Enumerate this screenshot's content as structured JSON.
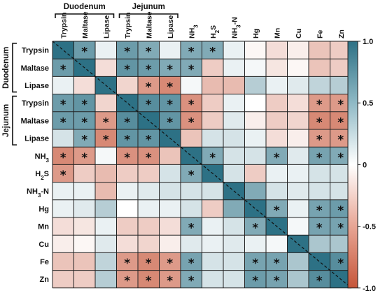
{
  "chart_data": {
    "type": "heatmap",
    "title": "",
    "columns": [
      "Trypsin",
      "Maltase",
      "Lipase",
      "Trypsin",
      "Maltase",
      "Lipase",
      "NH3",
      "H2S",
      "NH3-N",
      "Hg",
      "Mn",
      "Cu",
      "Fe",
      "Zn"
    ],
    "rows": [
      "Trypsin",
      "Maltase",
      "Lipase",
      "Trypsin",
      "Maltase",
      "Lipase",
      "NH3",
      "H2S",
      "NH3-N",
      "Hg",
      "Mn",
      "Cu",
      "Fe",
      "Zn"
    ],
    "row_labels": [
      {
        "base": "Trypsin"
      },
      {
        "base": "Maltase"
      },
      {
        "base": "Lipase"
      },
      {
        "base": "Trypsin"
      },
      {
        "base": "Maltase"
      },
      {
        "base": "Lipase"
      },
      {
        "base": "NH",
        "sub": "3"
      },
      {
        "base": "H",
        "sub": "2",
        "tail": "S"
      },
      {
        "base": "NH",
        "sub": "3",
        "tail": "-N"
      },
      {
        "base": "Hg"
      },
      {
        "base": "Mn"
      },
      {
        "base": "Cu"
      },
      {
        "base": "Fe"
      },
      {
        "base": "Zn"
      }
    ],
    "col_labels": [
      {
        "base": "Trypsin"
      },
      {
        "base": "Maltase"
      },
      {
        "base": "Lipase"
      },
      {
        "base": "Trypsin"
      },
      {
        "base": "Maltase"
      },
      {
        "base": "Lipase"
      },
      {
        "base": "NH",
        "sub": "3"
      },
      {
        "base": "H",
        "sub": "2",
        "tail": "S"
      },
      {
        "base": "NH",
        "sub": "3",
        "tail": "-N"
      },
      {
        "base": "Hg"
      },
      {
        "base": "Mn"
      },
      {
        "base": "Cu"
      },
      {
        "base": "Fe"
      },
      {
        "base": "Zn"
      }
    ],
    "col_groups": [
      {
        "label": "Duodenum",
        "from": 0,
        "to": 2
      },
      {
        "label": "Jejunum",
        "from": 3,
        "to": 5
      }
    ],
    "row_groups": [
      {
        "label": "Duodenum",
        "from": 0,
        "to": 2
      },
      {
        "label": "Jejunum",
        "from": 3,
        "to": 5
      }
    ],
    "values": [
      [
        1.0,
        0.7,
        0.1,
        0.7,
        0.6,
        0.1,
        0.6,
        0.6,
        0.1,
        -0.05,
        -0.2,
        -0.1,
        -0.35,
        -0.3
      ],
      [
        0.7,
        1.0,
        -0.2,
        0.75,
        0.7,
        0.6,
        0.6,
        -0.3,
        0.1,
        0.05,
        -0.15,
        -0.05,
        -0.35,
        -0.3
      ],
      [
        0.1,
        -0.2,
        1.0,
        -0.25,
        -0.6,
        -0.7,
        0.05,
        -0.4,
        -0.4,
        0.35,
        0.1,
        0.15,
        0.3,
        0.35
      ],
      [
        0.7,
        0.75,
        -0.25,
        1.0,
        0.8,
        0.75,
        -0.65,
        -0.3,
        0.1,
        0.0,
        -0.3,
        -0.2,
        -0.6,
        -0.6
      ],
      [
        0.7,
        0.7,
        -0.6,
        0.8,
        1.0,
        0.75,
        -0.65,
        -0.3,
        0.15,
        -0.1,
        -0.3,
        -0.25,
        -0.7,
        -0.7
      ],
      [
        0.2,
        0.6,
        -0.7,
        0.75,
        0.75,
        1.0,
        -0.35,
        0.2,
        0.2,
        0.1,
        -0.2,
        -0.1,
        -0.6,
        -0.6
      ],
      [
        -0.7,
        -0.6,
        0.05,
        -0.65,
        -0.65,
        -0.35,
        1.0,
        0.6,
        0.2,
        0.2,
        0.6,
        0.15,
        0.65,
        0.6
      ],
      [
        -0.6,
        -0.3,
        -0.4,
        -0.3,
        -0.3,
        0.2,
        0.6,
        1.0,
        0.2,
        -0.3,
        0.1,
        0.1,
        0.2,
        0.2
      ],
      [
        0.1,
        0.1,
        -0.4,
        0.1,
        0.15,
        0.2,
        0.2,
        0.2,
        1.0,
        0.6,
        0.2,
        0.15,
        0.2,
        0.2
      ],
      [
        0.1,
        0.15,
        0.35,
        0.0,
        0.1,
        0.1,
        0.2,
        -0.3,
        0.6,
        1.0,
        0.6,
        0.1,
        0.65,
        0.7
      ],
      [
        -0.2,
        -0.15,
        0.1,
        -0.3,
        -0.3,
        -0.2,
        0.6,
        0.1,
        0.2,
        0.6,
        1.0,
        0.05,
        0.65,
        0.65
      ],
      [
        -0.1,
        -0.05,
        0.15,
        -0.2,
        -0.25,
        -0.1,
        0.15,
        0.1,
        0.15,
        0.1,
        0.05,
        1.0,
        0.4,
        0.4
      ],
      [
        -0.35,
        -0.35,
        0.3,
        -0.6,
        -0.7,
        -0.6,
        0.65,
        0.2,
        0.2,
        0.65,
        0.65,
        0.4,
        1.0,
        0.8
      ],
      [
        -0.3,
        -0.3,
        0.35,
        -0.6,
        -0.7,
        -0.6,
        0.6,
        0.2,
        0.2,
        0.7,
        0.65,
        0.4,
        0.8,
        1.0
      ]
    ],
    "significant": [
      [
        0,
        1,
        0,
        1,
        1,
        0,
        1,
        1,
        0,
        0,
        0,
        0,
        0,
        0
      ],
      [
        1,
        0,
        0,
        1,
        1,
        1,
        1,
        0,
        0,
        0,
        0,
        0,
        0,
        0
      ],
      [
        0,
        0,
        0,
        0,
        1,
        1,
        0,
        0,
        0,
        0,
        0,
        0,
        0,
        0
      ],
      [
        1,
        1,
        0,
        0,
        1,
        1,
        1,
        0,
        0,
        0,
        0,
        0,
        1,
        1
      ],
      [
        1,
        1,
        1,
        1,
        0,
        1,
        1,
        0,
        0,
        0,
        0,
        0,
        1,
        1
      ],
      [
        0,
        1,
        1,
        1,
        1,
        0,
        0,
        0,
        0,
        0,
        0,
        0,
        1,
        1
      ],
      [
        1,
        1,
        0,
        1,
        1,
        0,
        0,
        1,
        0,
        0,
        1,
        0,
        1,
        1
      ],
      [
        1,
        0,
        0,
        0,
        0,
        0,
        1,
        0,
        0,
        0,
        0,
        0,
        0,
        0
      ],
      [
        0,
        0,
        0,
        0,
        0,
        0,
        0,
        0,
        0,
        0,
        0,
        0,
        0,
        0
      ],
      [
        0,
        0,
        0,
        0,
        0,
        0,
        0,
        0,
        0,
        0,
        1,
        0,
        1,
        1
      ],
      [
        0,
        0,
        0,
        0,
        0,
        0,
        1,
        0,
        0,
        1,
        0,
        0,
        1,
        1
      ],
      [
        0,
        0,
        0,
        0,
        0,
        0,
        0,
        0,
        0,
        0,
        0,
        0,
        0,
        0
      ],
      [
        0,
        0,
        0,
        1,
        1,
        1,
        1,
        0,
        0,
        1,
        1,
        0,
        0,
        1
      ],
      [
        0,
        0,
        0,
        1,
        1,
        1,
        1,
        0,
        0,
        1,
        1,
        0,
        1,
        0
      ]
    ],
    "sig_marker": "*",
    "diagonal_line": true,
    "colorbar": {
      "range": [
        -1.0,
        1.0
      ],
      "ticks": [
        "1.0",
        "0.5",
        "0",
        "-0.5",
        "-1.0"
      ],
      "tick_values": [
        1.0,
        0.5,
        0,
        -0.5,
        -1.0
      ],
      "position": "right"
    },
    "colors": {
      "positive": "#2d7185",
      "neutral": "#ffffff",
      "negative": "#c6563a",
      "grid": "#222222"
    }
  }
}
